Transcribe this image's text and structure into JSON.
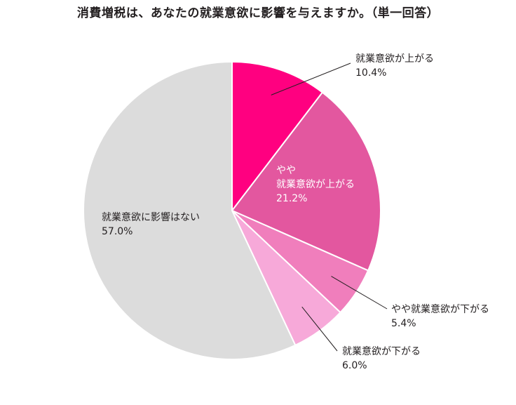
{
  "chart_data": {
    "type": "pie",
    "title": "消費増税は、あなたの就業意欲に影響を与えますか。（単一回答）",
    "slices": [
      {
        "label": "就業意欲が上がる",
        "label_lines": [
          "就業意欲が上がる"
        ],
        "value": 10.4,
        "value_label": "10.4%",
        "color": "#ff0080"
      },
      {
        "label": "やや就業意欲が上がる",
        "label_lines": [
          "やや",
          "就業意欲が上がる"
        ],
        "value": 21.2,
        "value_label": "21.2%",
        "color": "#e3579f"
      },
      {
        "label": "やや就業意欲が下がる",
        "label_lines": [
          "やや就業意欲が下がる"
        ],
        "value": 5.4,
        "value_label": "5.4%",
        "color": "#f07ebc"
      },
      {
        "label": "就業意欲が下がる",
        "label_lines": [
          "就業意欲が下がる"
        ],
        "value": 6.0,
        "value_label": "6.0%",
        "color": "#f7a9d9"
      },
      {
        "label": "就業意欲に影響はない",
        "label_lines": [
          "就業意欲に影響はない"
        ],
        "value": 57.0,
        "value_label": "57.0%",
        "color": "#dcdcdc"
      }
    ],
    "start": "12 o'clock",
    "direction": "clockwise",
    "legend": "none"
  }
}
